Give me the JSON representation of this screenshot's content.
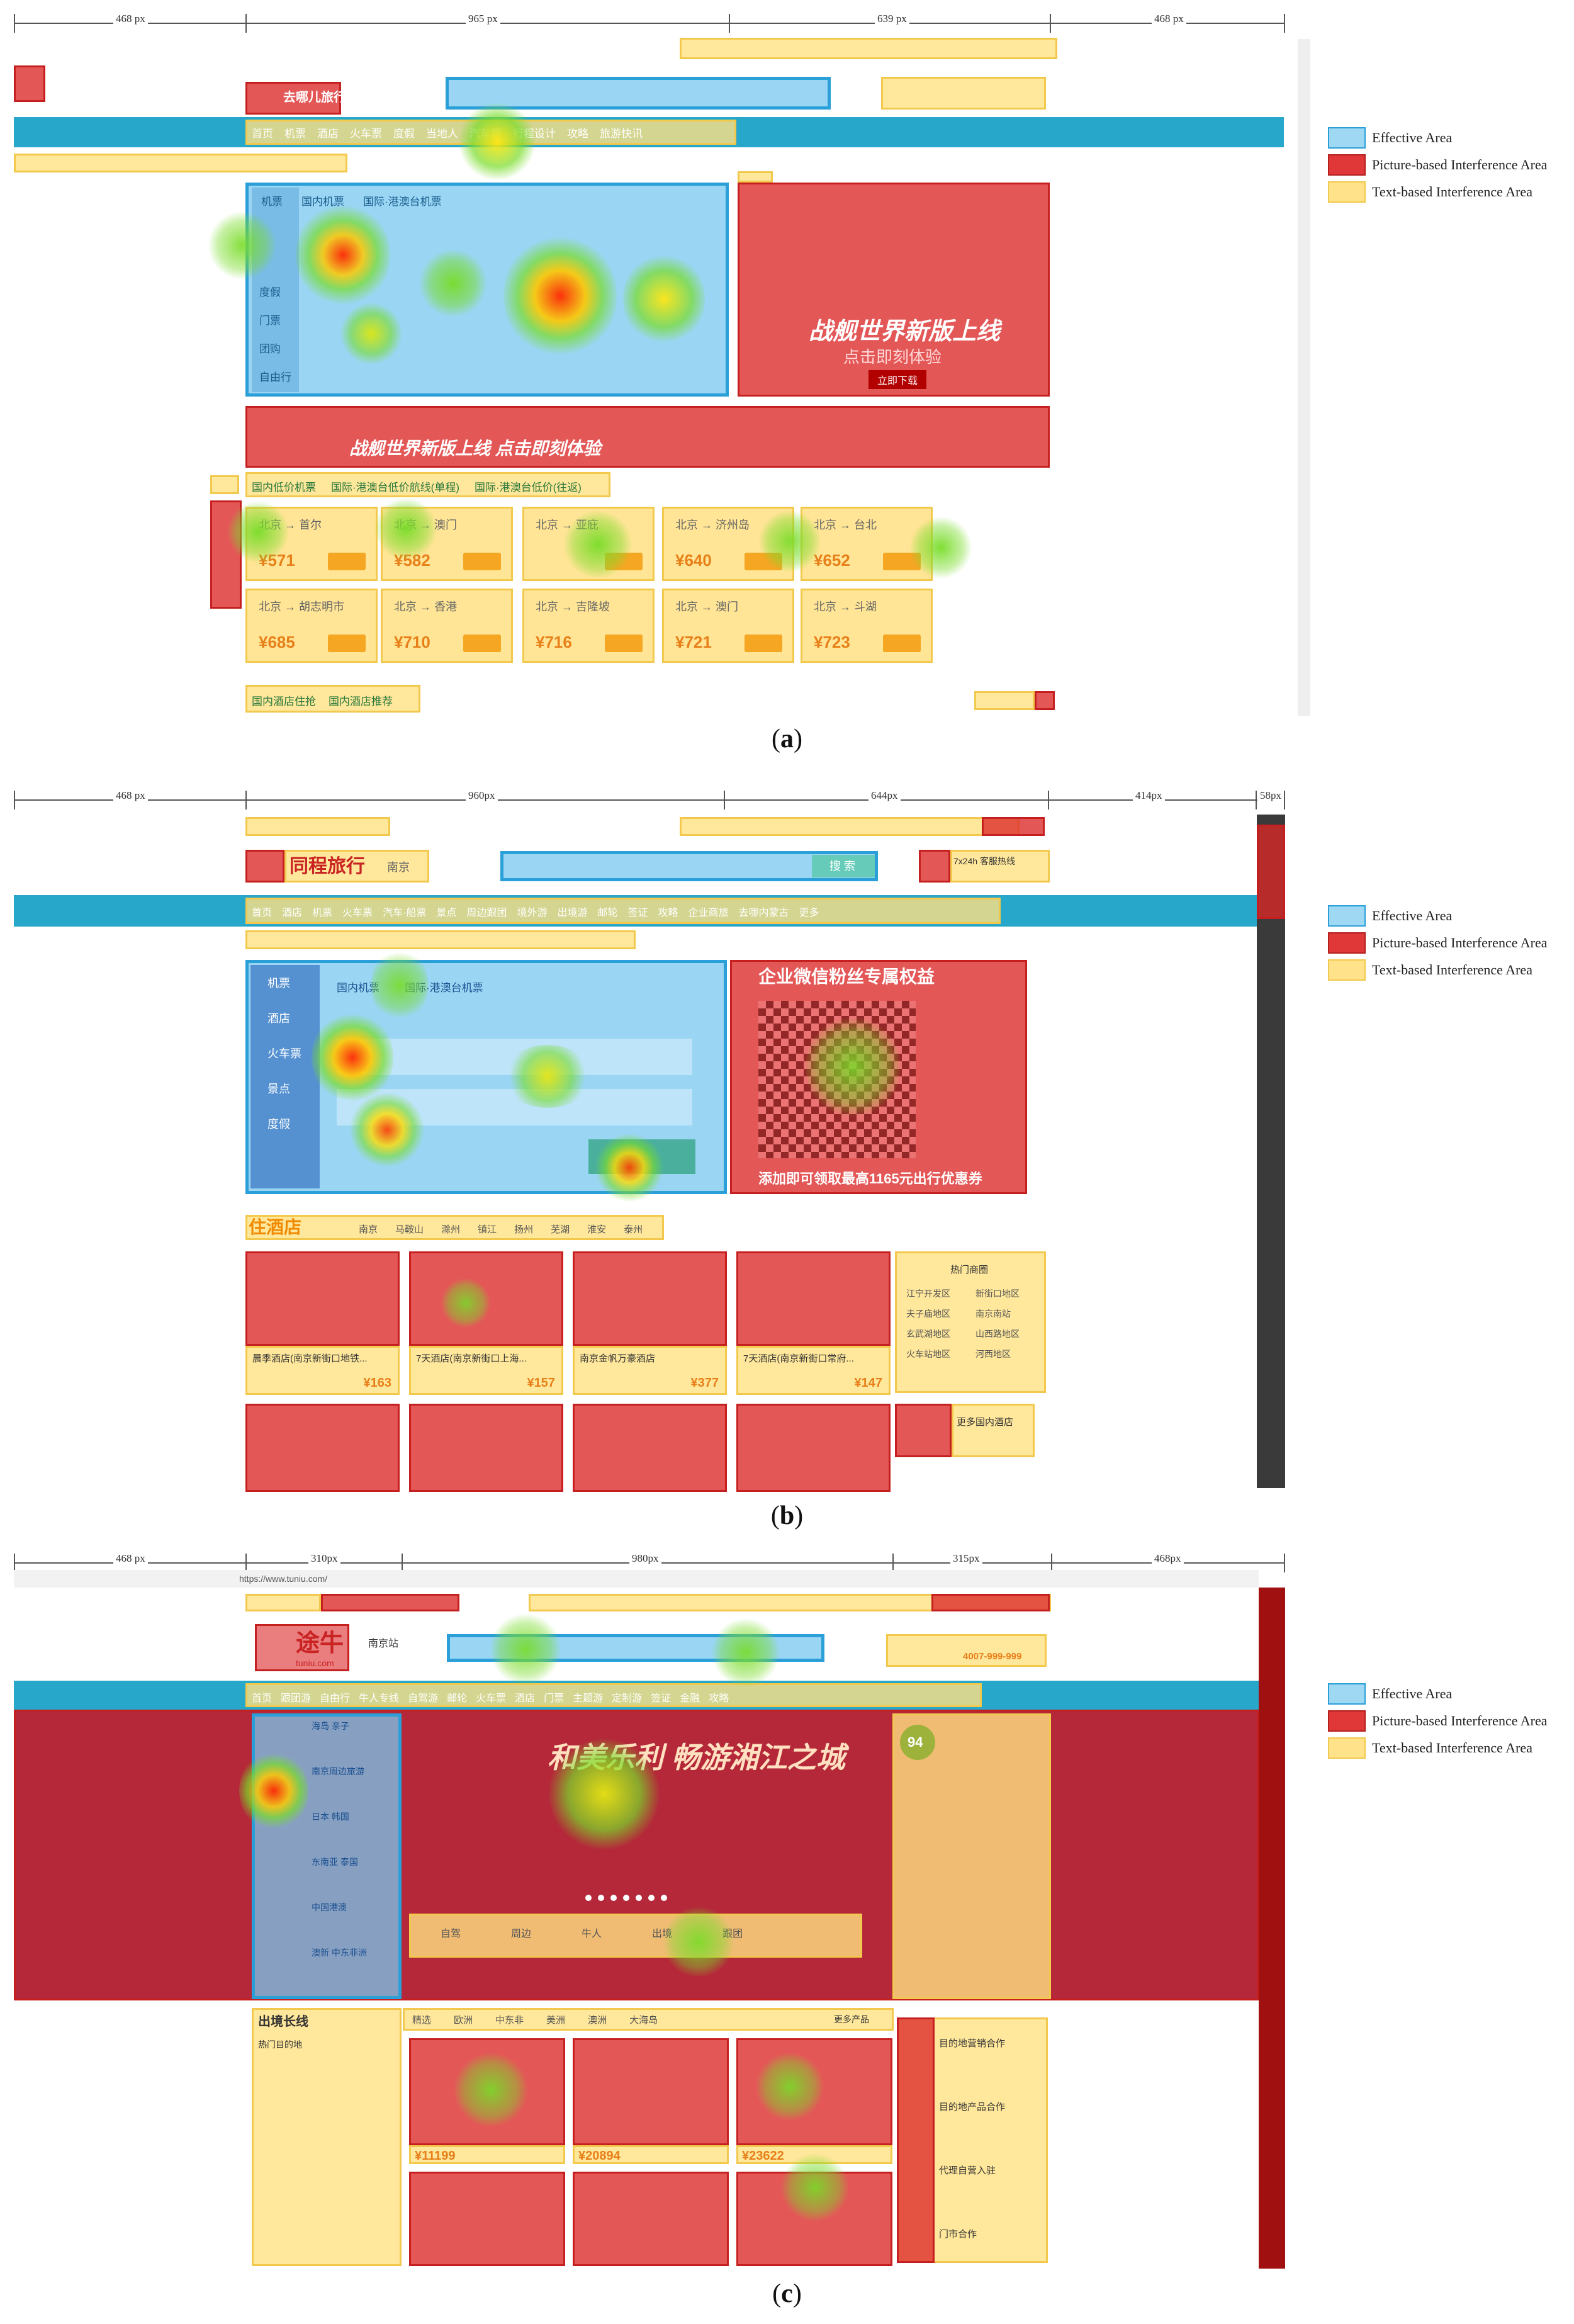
{
  "legend": {
    "effective": "Effective Area",
    "picture": "Picture-based Interference Area",
    "text": "Text-based Interference Area"
  },
  "colors": {
    "effective": "#9fd8f3",
    "picture": "#e03838",
    "text": "#ffe28a",
    "nav": "#27a7c9"
  },
  "panel_a": {
    "caption_letter": "a",
    "measures": [
      "468 px",
      "965 px",
      "639 px",
      "468 px"
    ],
    "logo": "去哪儿旅行",
    "nav_items": [
      "首页",
      "机票",
      "酒店",
      "火车票",
      "度假",
      "当地人",
      "汽车票",
      "行程设计",
      "攻略",
      "旅游快讯"
    ],
    "search_tabs": [
      "机票",
      "国内机票",
      "国际·港澳台机票"
    ],
    "side_tabs": [
      "度假",
      "门票",
      "团购",
      "自由行"
    ],
    "banner_title": "战舰世界新版上线",
    "banner_sub": "点击即刻体验",
    "banner_btn": "立即下载",
    "strip_text": "战舰世界新版上线  点击即刻体验",
    "flight_tabs": [
      "国内低价机票",
      "国际·港澳台低价航线(单程)",
      "国际·港澳台低价(往返)"
    ],
    "cards": [
      {
        "route": "北京 → 首尔",
        "price": "¥571"
      },
      {
        "route": "北京 → 澳门",
        "price": "¥582"
      },
      {
        "route": "北京 → 亚庇",
        "price": ""
      },
      {
        "route": "北京 → 济州岛",
        "price": "¥640"
      },
      {
        "route": "北京 → 台北",
        "price": "¥652"
      },
      {
        "route": "北京 → 胡志明市",
        "price": "¥685"
      },
      {
        "route": "北京 → 香港",
        "price": "¥710"
      },
      {
        "route": "北京 → 吉隆坡",
        "price": "¥716"
      },
      {
        "route": "北京 → 澳门",
        "price": "¥721"
      },
      {
        "route": "北京 → 斗湖",
        "price": "¥723"
      }
    ],
    "hotel_tabs": [
      "国内酒店住抢",
      "国内酒店推荐"
    ]
  },
  "panel_b": {
    "caption_letter": "b",
    "measures": [
      "468 px",
      "960px",
      "644px",
      "414px",
      "58px"
    ],
    "logo": "同程旅行",
    "city": "南京",
    "search_btn": "搜 索",
    "phone": "7x24h 客服热线",
    "nav_items": [
      "首页",
      "酒店",
      "机票",
      "火车票",
      "汽车·船票",
      "景点",
      "周边跟团",
      "境外游",
      "出境游",
      "邮轮",
      "签证",
      "攻略",
      "企业商旅",
      "去哪内蒙古",
      "更多"
    ],
    "side_tabs": [
      "机票",
      "酒店",
      "火车票",
      "景点",
      "度假"
    ],
    "search_tabs": [
      "国内机票",
      "国际·港澳台机票"
    ],
    "ad_title": "企业微信粉丝专属权益",
    "ad_foot": "添加即可领取最高1165元出行优惠券",
    "hotel_title": "住酒店",
    "hotel_tabs": [
      "南京",
      "马鞍山",
      "滁州",
      "镇江",
      "扬州",
      "芜湖",
      "淮安",
      "泰州"
    ],
    "hotels": [
      {
        "name": "晨季酒店(南京新街口地铁...",
        "price": "¥163"
      },
      {
        "name": "7天酒店(南京新街口上海...",
        "price": "¥157"
      },
      {
        "name": "南京金帆万豪酒店",
        "price": "¥377"
      },
      {
        "name": "7天酒店(南京新街口常府...",
        "price": "¥147"
      }
    ],
    "hot_areas_title": "热门商圈",
    "hot_areas": [
      "江宁开发区",
      "新街口地区",
      "夫子庙地区",
      "南京南站",
      "玄武湖地区",
      "山西路地区",
      "火车站地区",
      "河西地区"
    ],
    "more_hotels": "更多国内酒店"
  },
  "panel_c": {
    "caption_letter": "c",
    "measures": [
      "468 px",
      "310px",
      "980px",
      "315px",
      "468px"
    ],
    "url": "https://www.tuniu.com/",
    "logo": "途牛",
    "logo_sub": "tuniu.com",
    "city": "南京站",
    "hotline": "4007-999-999",
    "nav_items": [
      "首页",
      "跟团游",
      "自由行",
      "牛人专线",
      "自驾游",
      "邮轮",
      "火车票",
      "酒店",
      "门票",
      "主题游",
      "定制游",
      "签证",
      "金融",
      "攻略"
    ],
    "side_menu": [
      "海岛 亲子",
      "南京周边旅游",
      "日本 韩国",
      "东南亚 泰国",
      "中国港澳",
      "澳新 中东非洲"
    ],
    "banner_title": "和美乐利 畅游湘江之城",
    "quick_items": [
      "自驾",
      "周边",
      "牛人",
      "出境",
      "跟团"
    ],
    "side_panel_title": "94",
    "long_title": "出境长线",
    "long_sub": "热门目的地",
    "tabs": [
      "精选",
      "欧洲",
      "中东非",
      "美洲",
      "澳洲",
      "大海岛"
    ],
    "more": "更多产品",
    "tour_prices": [
      "¥11199",
      "¥20894",
      "¥23622"
    ],
    "right_items": [
      "目的地营销合作",
      "目的地产品合作",
      "代理自营入驻",
      "门市合作"
    ]
  }
}
